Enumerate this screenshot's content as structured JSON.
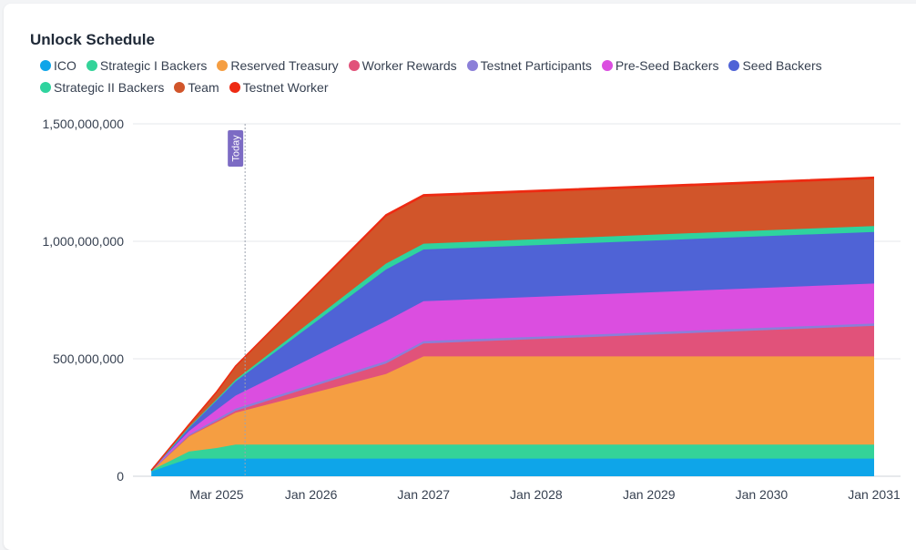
{
  "chart_data": {
    "type": "area",
    "stacked": true,
    "title": "Unlock Schedule",
    "x": [
      "2024-08-01",
      "2024-12-01",
      "2025-03-01",
      "2025-05-01",
      "2026-09-01",
      "2027-01-01",
      "2031-01-01"
    ],
    "xticks": [
      "Mar 2025",
      "Jan 2026",
      "Jan 2027",
      "Jan 2028",
      "Jan 2029",
      "Jan 2030",
      "Jan 2031"
    ],
    "xtick_dates": [
      "2025-03-01",
      "2026-01-01",
      "2027-01-01",
      "2028-01-01",
      "2029-01-01",
      "2030-01-01",
      "2031-01-01"
    ],
    "ylim": [
      0,
      1500000000
    ],
    "yticks": [
      0,
      500000000,
      1000000000,
      1500000000
    ],
    "ytick_labels": [
      "0",
      "500,000,000",
      "1,000,000,000",
      "1,500,000,000"
    ],
    "today_label": "Today",
    "today_date": "2025-06-01",
    "series": [
      {
        "name": "ICO",
        "color": "#0ea5e9",
        "values": [
          20000000,
          75000000,
          75000000,
          75000000,
          75000000,
          75000000,
          75000000
        ]
      },
      {
        "name": "Strategic I Backers",
        "color": "#34d399",
        "values": [
          5000000,
          30000000,
          45000000,
          60000000,
          60000000,
          60000000,
          60000000
        ]
      },
      {
        "name": "Reserved Treasury",
        "color": "#f59e42",
        "values": [
          0,
          65000000,
          110000000,
          135000000,
          300000000,
          375000000,
          375000000
        ]
      },
      {
        "name": "Worker Rewards",
        "color": "#e1527a",
        "values": [
          0,
          2000000,
          5000000,
          8000000,
          45000000,
          55000000,
          130000000
        ]
      },
      {
        "name": "Testnet Participants",
        "color": "#8b7fd8",
        "values": [
          0,
          5000000,
          8000000,
          10000000,
          10000000,
          10000000,
          10000000
        ]
      },
      {
        "name": "Pre-Seed Backers",
        "color": "#db4ee0",
        "values": [
          0,
          15000000,
          40000000,
          55000000,
          170000000,
          170000000,
          170000000
        ]
      },
      {
        "name": "Seed Backers",
        "color": "#4f63d6",
        "values": [
          0,
          15000000,
          40000000,
          60000000,
          220000000,
          220000000,
          220000000
        ]
      },
      {
        "name": "Strategic II Backers",
        "color": "#2fd39e",
        "values": [
          0,
          2000000,
          5000000,
          8000000,
          25000000,
          25000000,
          25000000
        ]
      },
      {
        "name": "Team",
        "color": "#d1552a",
        "values": [
          0,
          10000000,
          30000000,
          55000000,
          200000000,
          200000000,
          200000000
        ]
      },
      {
        "name": "Testnet Worker",
        "color": "#ee2a12",
        "values": [
          0,
          1000000,
          2000000,
          3000000,
          8000000,
          8000000,
          8000000
        ]
      }
    ]
  }
}
